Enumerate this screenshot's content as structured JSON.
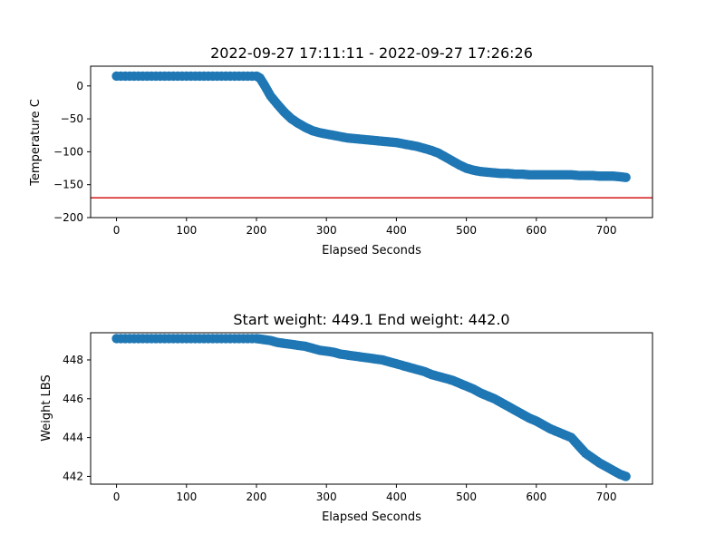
{
  "chart_data": [
    {
      "type": "scatter",
      "title": "2022-09-27 17:11:11 - 2022-09-27 17:26:26",
      "xlabel": "Elapsed Seconds",
      "ylabel": "Temperature C",
      "xlim": [
        -37,
        766
      ],
      "ylim": [
        -200,
        30
      ],
      "xticks": [
        0,
        100,
        200,
        300,
        400,
        500,
        600,
        700
      ],
      "yticks": [
        0,
        -50,
        -100,
        -150,
        -200
      ],
      "xtick_labels": [
        "0",
        "100",
        "200",
        "300",
        "400",
        "500",
        "600",
        "700"
      ],
      "ytick_labels": [
        "0",
        "−50",
        "−100",
        "−150",
        "−200"
      ],
      "grid": false,
      "marker_color": "#1f77b4",
      "reference_line": {
        "y": -170,
        "color": "#d62728"
      },
      "series": [
        {
          "x": [
            0,
            25,
            50,
            75,
            100,
            125,
            150,
            175,
            200,
            205,
            212,
            220,
            230,
            240,
            250,
            260,
            270,
            280,
            290,
            300,
            310,
            320,
            330,
            340,
            350,
            360,
            370,
            380,
            390,
            400,
            410,
            420,
            430,
            440,
            450,
            460,
            470,
            480,
            490,
            500,
            510,
            520,
            530,
            540,
            550,
            560,
            570,
            580,
            590,
            600,
            610,
            620,
            630,
            640,
            650,
            660,
            670,
            680,
            690,
            700,
            710,
            720,
            728
          ],
          "y": [
            15,
            15,
            15,
            15,
            15,
            15,
            15,
            15,
            15,
            12,
            0,
            -15,
            -28,
            -40,
            -50,
            -57,
            -63,
            -68,
            -71,
            -73,
            -75,
            -77,
            -79,
            -80,
            -81,
            -82,
            -83,
            -84,
            -85,
            -86,
            -88,
            -90,
            -92,
            -95,
            -98,
            -102,
            -108,
            -114,
            -120,
            -125,
            -128,
            -130,
            -131,
            -132,
            -133,
            -133,
            -134,
            -134,
            -135,
            -135,
            -135,
            -135,
            -135,
            -135,
            -135,
            -136,
            -136,
            -136,
            -137,
            -137,
            -137,
            -138,
            -139
          ]
        }
      ]
    },
    {
      "type": "scatter",
      "title": "Start weight: 449.1 End weight: 442.0",
      "xlabel": "Elapsed Seconds",
      "ylabel": "Weight LBS",
      "xlim": [
        -37,
        766
      ],
      "ylim": [
        441.6,
        449.4
      ],
      "xticks": [
        0,
        100,
        200,
        300,
        400,
        500,
        600,
        700
      ],
      "yticks": [
        442,
        444,
        446,
        448
      ],
      "xtick_labels": [
        "0",
        "100",
        "200",
        "300",
        "400",
        "500",
        "600",
        "700"
      ],
      "ytick_labels": [
        "442",
        "444",
        "446",
        "448"
      ],
      "grid": false,
      "marker_color": "#1f77b4",
      "series": [
        {
          "x": [
            0,
            25,
            50,
            75,
            100,
            125,
            150,
            175,
            200,
            210,
            220,
            230,
            240,
            250,
            260,
            270,
            280,
            290,
            300,
            310,
            320,
            330,
            340,
            350,
            360,
            370,
            380,
            390,
            400,
            410,
            420,
            430,
            440,
            450,
            460,
            470,
            480,
            490,
            500,
            510,
            520,
            530,
            540,
            550,
            560,
            570,
            580,
            590,
            600,
            610,
            620,
            630,
            640,
            650,
            660,
            670,
            680,
            690,
            700,
            710,
            720,
            728
          ],
          "y": [
            449.1,
            449.1,
            449.1,
            449.1,
            449.1,
            449.1,
            449.1,
            449.1,
            449.1,
            449.05,
            449.0,
            448.9,
            448.85,
            448.8,
            448.75,
            448.7,
            448.6,
            448.5,
            448.45,
            448.4,
            448.3,
            448.25,
            448.2,
            448.15,
            448.1,
            448.05,
            448.0,
            447.9,
            447.8,
            447.7,
            447.6,
            447.5,
            447.4,
            447.25,
            447.15,
            447.05,
            446.95,
            446.8,
            446.65,
            446.5,
            446.3,
            446.15,
            446.0,
            445.8,
            445.6,
            445.4,
            445.2,
            445.0,
            444.85,
            444.65,
            444.45,
            444.3,
            444.15,
            444.0,
            443.6,
            443.2,
            442.95,
            442.7,
            442.5,
            442.3,
            442.1,
            442.0
          ]
        }
      ]
    }
  ]
}
